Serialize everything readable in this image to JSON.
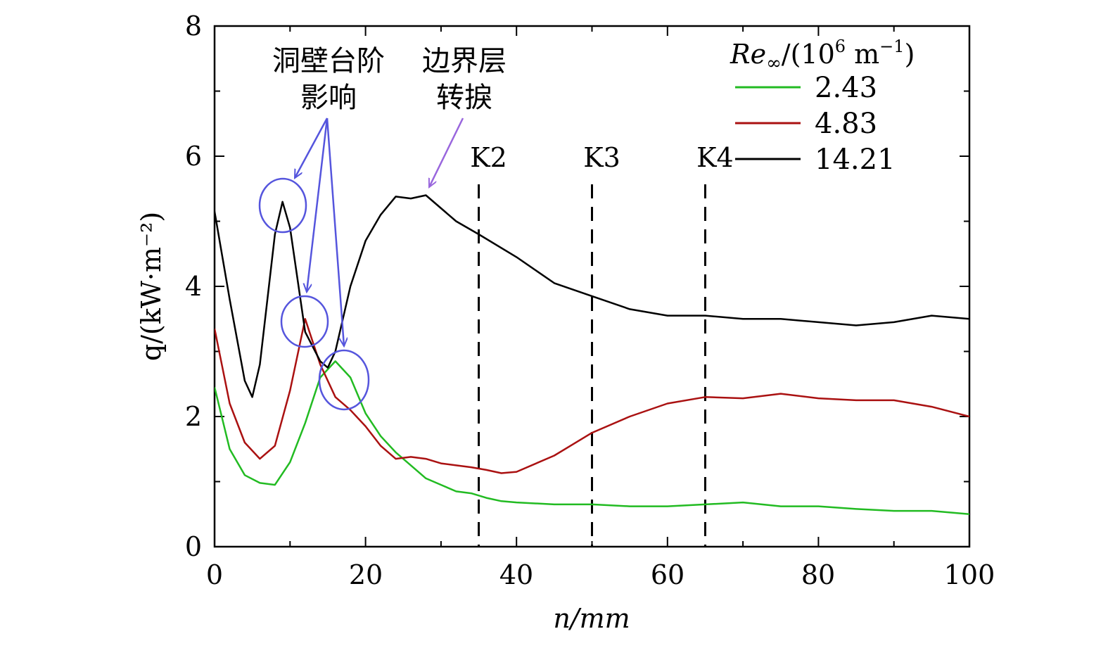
{
  "chart_data": {
    "type": "line",
    "xlabel": "n/mm",
    "ylabel": "q/(kW·m⁻²)",
    "xlim": [
      0,
      100
    ],
    "ylim": [
      0,
      8
    ],
    "xticks": [
      "0",
      "20",
      "40",
      "60",
      "80",
      "100"
    ],
    "yticks": [
      "0",
      "2",
      "4",
      "6",
      "8"
    ],
    "grid": false,
    "legend": {
      "title_main": "Re",
      "title_sub": "∞",
      "title_unit": "/(10",
      "title_exp1": "6",
      "title_unit2": " m",
      "title_exp2": "−1",
      "title_close": ")",
      "placement": "top-right"
    },
    "series": [
      {
        "name": "2.43",
        "color": "#22bb22",
        "x": [
          0,
          2,
          4,
          6,
          8,
          10,
          12,
          14,
          16,
          18,
          20,
          22,
          24,
          26,
          28,
          30,
          32,
          34,
          36,
          38,
          40,
          45,
          50,
          55,
          60,
          65,
          70,
          75,
          80,
          85,
          90,
          95,
          100
        ],
        "y": [
          2.45,
          1.5,
          1.1,
          0.98,
          0.95,
          1.3,
          1.9,
          2.6,
          2.85,
          2.6,
          2.05,
          1.7,
          1.45,
          1.25,
          1.05,
          0.95,
          0.85,
          0.82,
          0.75,
          0.7,
          0.68,
          0.65,
          0.65,
          0.62,
          0.62,
          0.65,
          0.68,
          0.62,
          0.62,
          0.58,
          0.55,
          0.55,
          0.5
        ]
      },
      {
        "name": "4.83",
        "color": "#aa1111",
        "x": [
          0,
          2,
          4,
          6,
          8,
          10,
          12,
          14,
          16,
          18,
          20,
          22,
          24,
          26,
          28,
          30,
          32,
          34,
          36,
          38,
          40,
          45,
          50,
          55,
          60,
          65,
          70,
          75,
          80,
          85,
          90,
          95,
          100
        ],
        "y": [
          3.35,
          2.2,
          1.6,
          1.35,
          1.55,
          2.4,
          3.5,
          2.8,
          2.3,
          2.1,
          1.85,
          1.55,
          1.35,
          1.38,
          1.35,
          1.28,
          1.25,
          1.22,
          1.18,
          1.13,
          1.15,
          1.4,
          1.75,
          2.0,
          2.2,
          2.3,
          2.28,
          2.35,
          2.28,
          2.25,
          2.25,
          2.15,
          2.0
        ]
      },
      {
        "name": "14.21",
        "color": "#000000",
        "x": [
          0,
          2,
          4,
          5,
          6,
          8,
          9,
          10,
          12,
          14,
          15,
          16,
          18,
          20,
          22,
          24,
          26,
          28,
          30,
          32,
          35,
          40,
          45,
          50,
          55,
          60,
          65,
          70,
          75,
          80,
          85,
          90,
          95,
          100
        ],
        "y": [
          5.15,
          3.8,
          2.55,
          2.3,
          2.8,
          4.8,
          5.3,
          4.9,
          3.3,
          2.85,
          2.75,
          3.0,
          4.0,
          4.7,
          5.1,
          5.38,
          5.35,
          5.4,
          5.2,
          5.0,
          4.8,
          4.45,
          4.05,
          3.85,
          3.65,
          3.55,
          3.55,
          3.5,
          3.5,
          3.45,
          3.4,
          3.45,
          3.55,
          3.5
        ]
      }
    ],
    "markers": [
      {
        "label": "K2",
        "x": 35
      },
      {
        "label": "K3",
        "x": 50
      },
      {
        "label": "K4",
        "x": 65
      }
    ],
    "annotations": [
      {
        "line1": "洞壁台阶",
        "line2": "影响",
        "color": "#5555dd"
      },
      {
        "line1": "边界层",
        "line2": "转捩",
        "color": "#9966dd"
      }
    ]
  }
}
